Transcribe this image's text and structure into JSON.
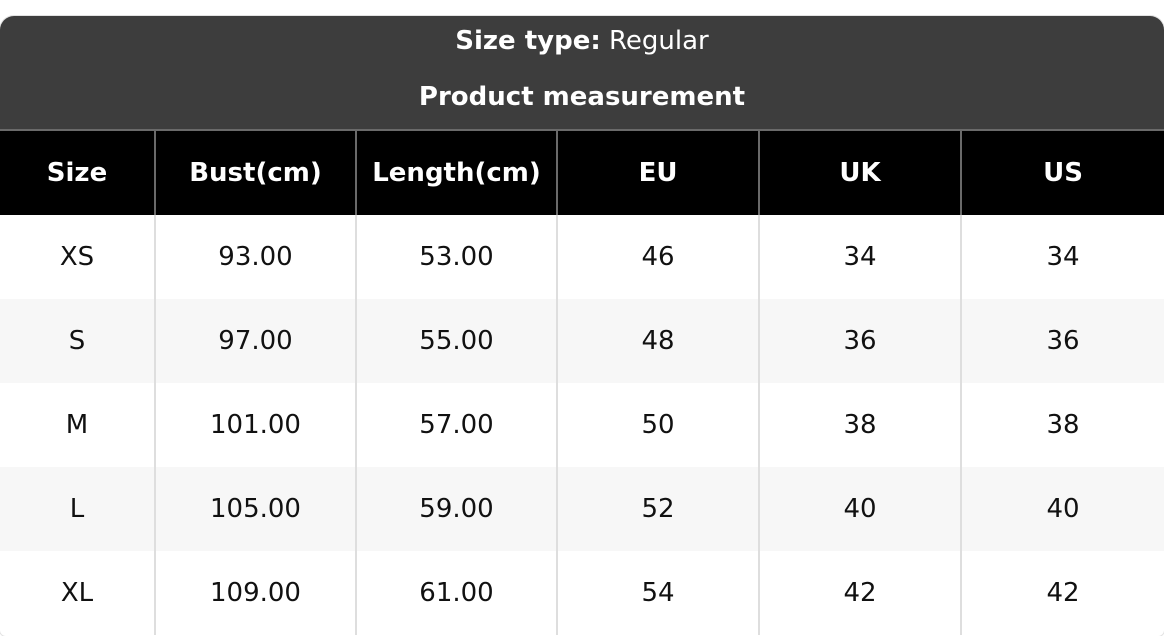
{
  "header": {
    "size_type_label": "Size type:",
    "size_type_value": "Regular",
    "subtitle": "Product measurement"
  },
  "table": {
    "columns": [
      "Size",
      "Bust(cm)",
      "Length(cm)",
      "EU",
      "UK",
      "US"
    ],
    "rows": [
      [
        "XS",
        "93.00",
        "53.00",
        "46",
        "34",
        "34"
      ],
      [
        "S",
        "97.00",
        "55.00",
        "48",
        "36",
        "36"
      ],
      [
        "M",
        "101.00",
        "57.00",
        "50",
        "38",
        "38"
      ],
      [
        "L",
        "105.00",
        "59.00",
        "52",
        "40",
        "40"
      ],
      [
        "XL",
        "109.00",
        "61.00",
        "54",
        "42",
        "42"
      ]
    ]
  },
  "colors": {
    "title_bg": "#3d3d3d",
    "header_bg": "#000000",
    "alt_row": "#f7f7f7"
  }
}
